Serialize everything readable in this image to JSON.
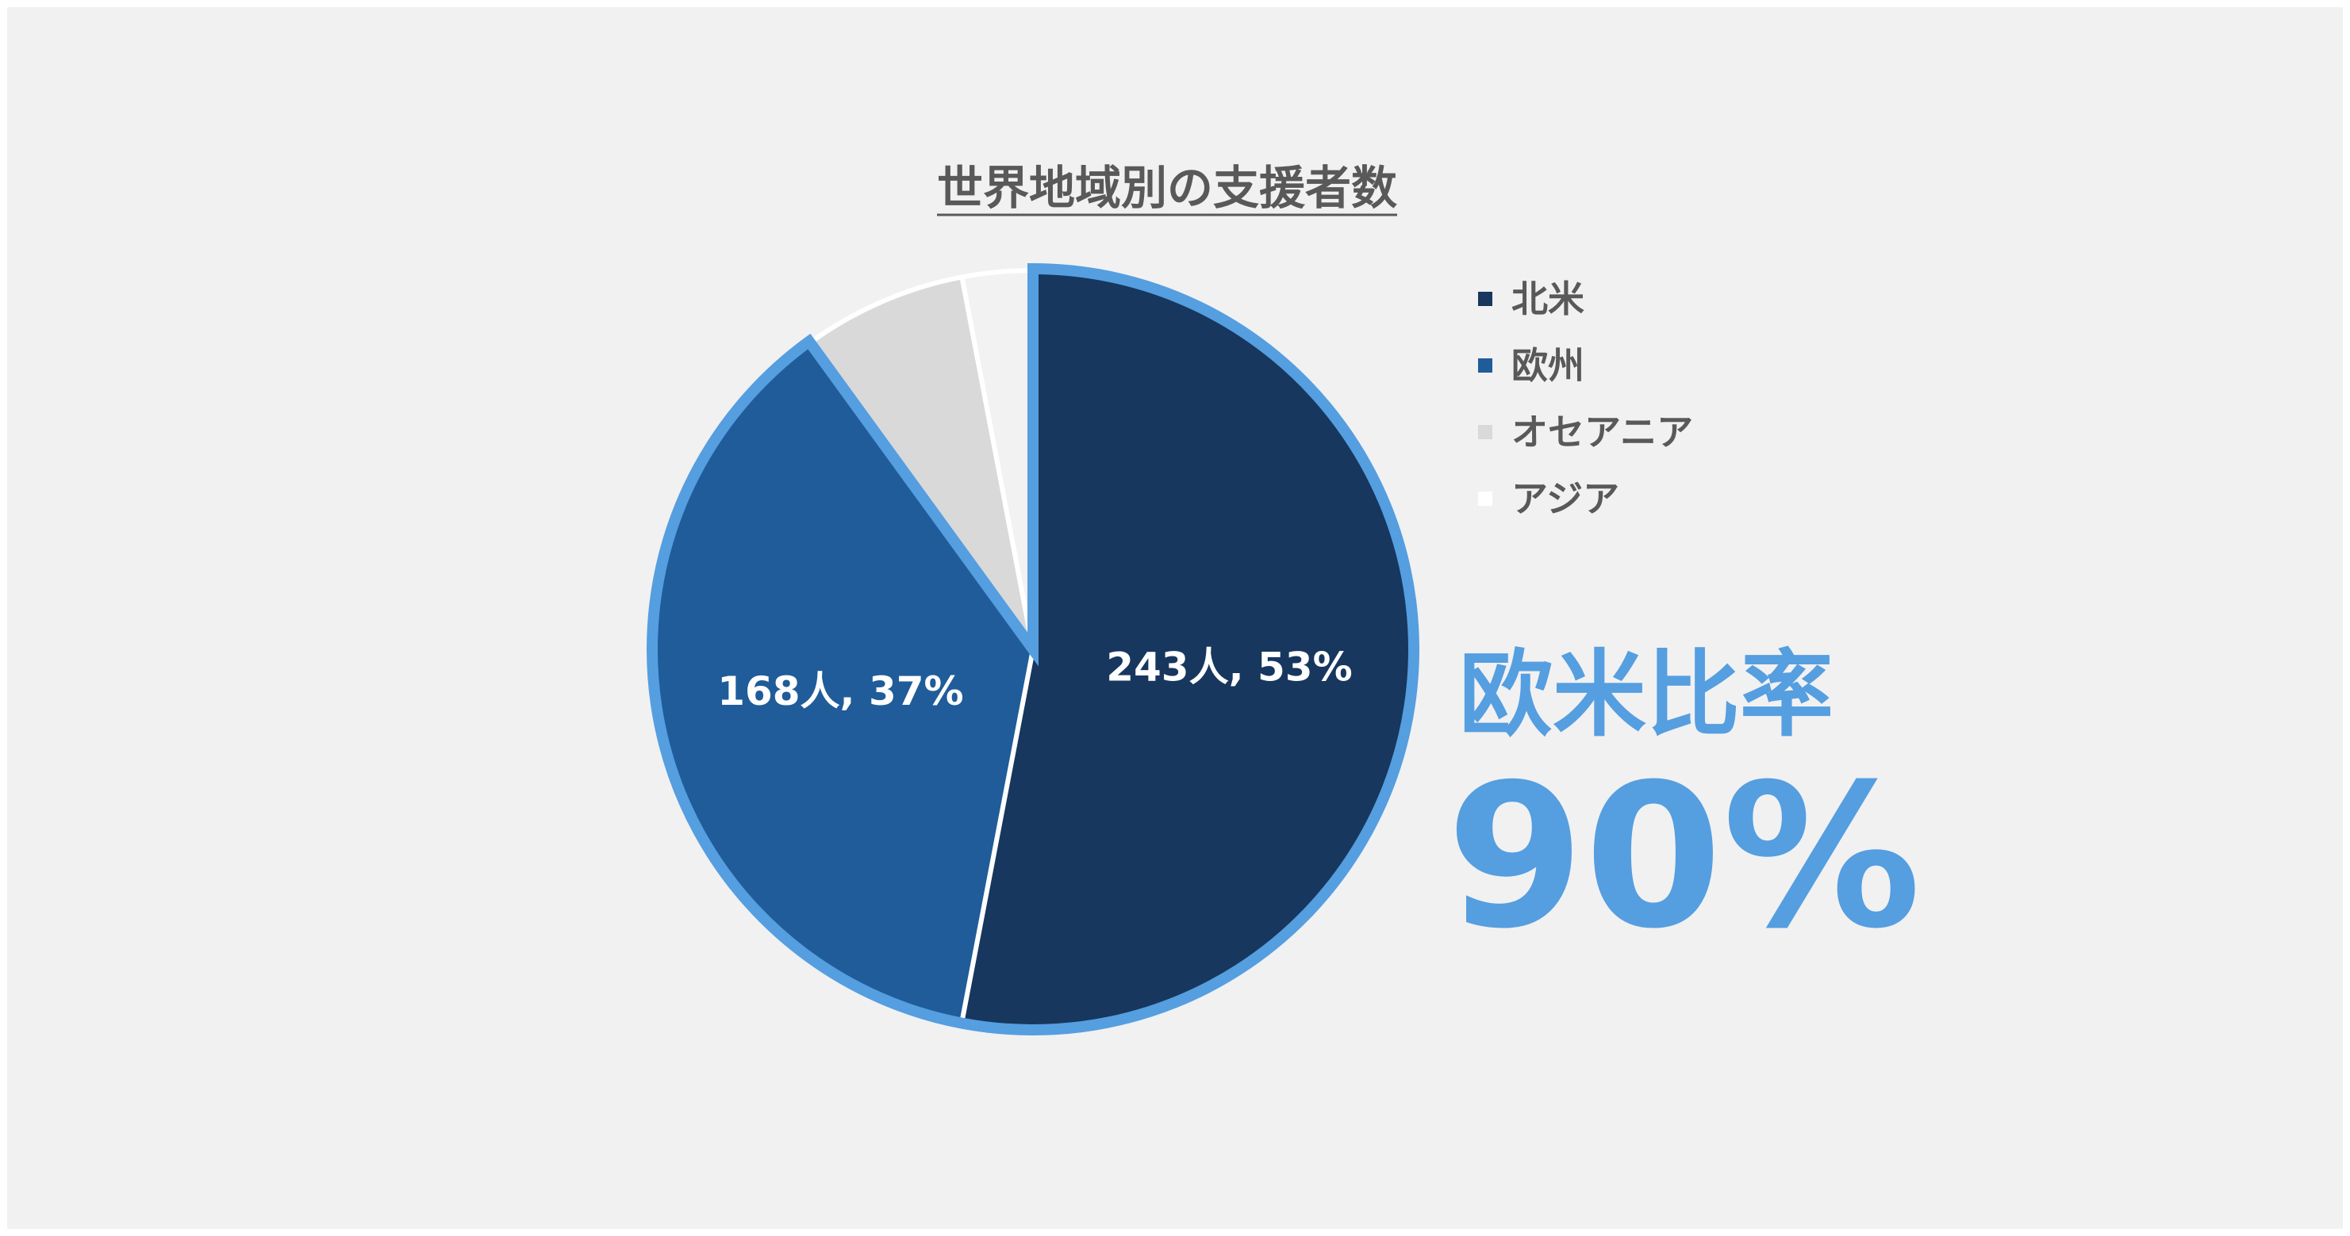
{
  "chart_data": {
    "type": "pie",
    "title": "世界地域別の支援者数",
    "categories": [
      "北米",
      "欧州",
      "オセアニア",
      "アジア"
    ],
    "values": [
      53,
      37,
      7,
      3
    ],
    "data_labels": [
      "243人, 53%",
      "168人, 37%",
      "",
      ""
    ],
    "colors": [
      "#17375e",
      "#1f5c99",
      "#d9d9d9",
      "#f2f2f2"
    ],
    "highlight_color": "#559ee0",
    "highlighted": [
      "北米",
      "欧州"
    ],
    "legend_position": "right"
  },
  "callout": {
    "label": "欧米比率",
    "value": "90%",
    "color": "#559ee0"
  }
}
